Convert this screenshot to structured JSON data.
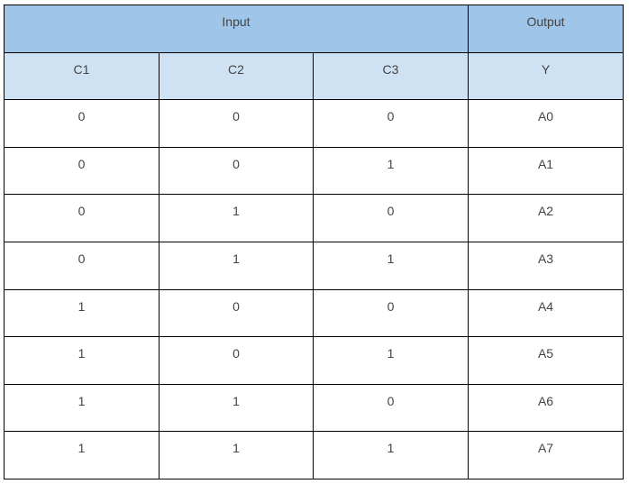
{
  "header": {
    "input": "Input",
    "output": "Output"
  },
  "columns": [
    "C1",
    "C2",
    "C3",
    "Y"
  ],
  "rows": [
    [
      "0",
      "0",
      "0",
      "A0"
    ],
    [
      "0",
      "0",
      "1",
      "A1"
    ],
    [
      "0",
      "1",
      "0",
      "A2"
    ],
    [
      "0",
      "1",
      "1",
      "A3"
    ],
    [
      "1",
      "0",
      "0",
      "A4"
    ],
    [
      "1",
      "0",
      "1",
      "A5"
    ],
    [
      "1",
      "1",
      "0",
      "A6"
    ],
    [
      "1",
      "1",
      "1",
      "A7"
    ]
  ],
  "colors": {
    "group_header": "#9fc5e8",
    "column_header": "#cfe2f3"
  }
}
